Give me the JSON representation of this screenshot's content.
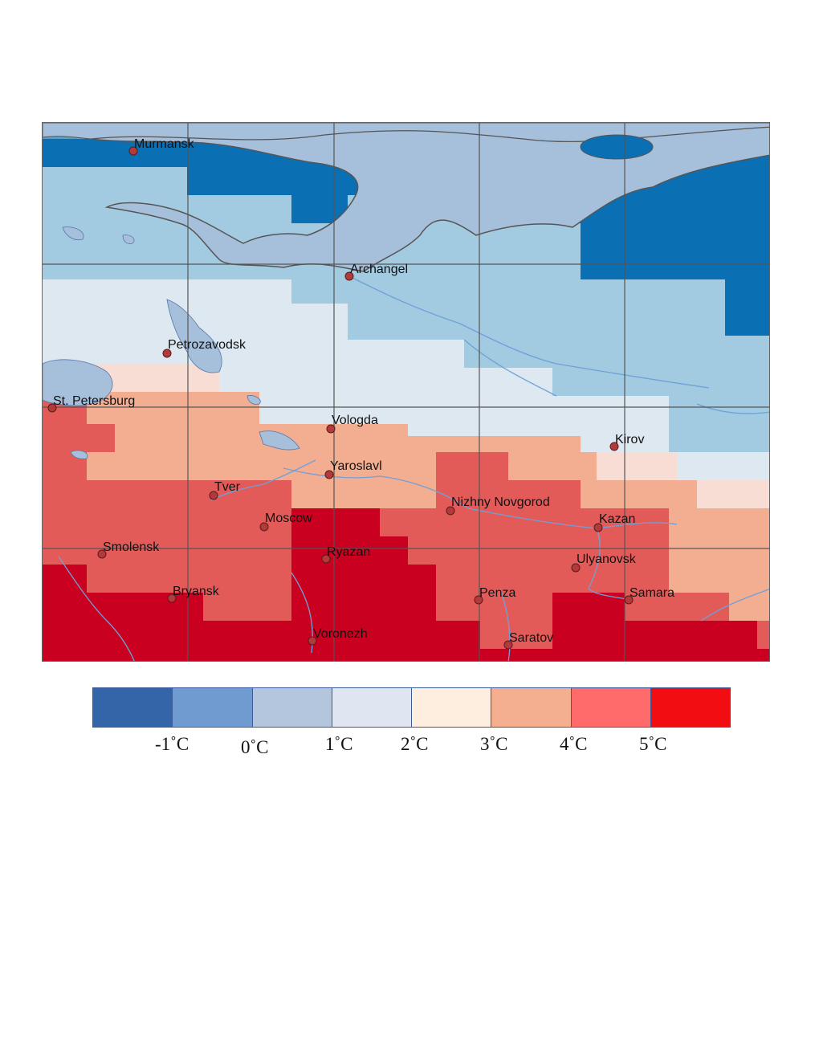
{
  "legend": {
    "colors": [
      "#3465a8",
      "#6f9bd1",
      "#b3c6de",
      "#dfe6f1",
      "#fdeee0",
      "#f4ae90",
      "#ff6b6b",
      "#f20d12"
    ],
    "labels": [
      "-1˚C",
      "0˚C",
      "1˚C",
      "2˚C",
      "3˚C",
      "4˚C",
      "5˚C"
    ]
  },
  "map": {
    "land_color": "#a6bfdb",
    "water_color": "#a6bfdb",
    "cities": [
      {
        "name": "Murmansk"
      },
      {
        "name": "Archangel"
      },
      {
        "name": "Petrozavodsk"
      },
      {
        "name": "St. Petersburg"
      },
      {
        "name": "Vologda"
      },
      {
        "name": "Kirov"
      },
      {
        "name": "Yaroslavl"
      },
      {
        "name": "Tver"
      },
      {
        "name": "Nizhny Novgorod"
      },
      {
        "name": "Moscow"
      },
      {
        "name": "Kazan"
      },
      {
        "name": "Smolensk"
      },
      {
        "name": "Ryazan"
      },
      {
        "name": "Ulyanovsk"
      },
      {
        "name": "Bryansk"
      },
      {
        "name": "Penza"
      },
      {
        "name": "Samara"
      },
      {
        "name": "Voronezh"
      },
      {
        "name": "Saratov"
      }
    ]
  }
}
